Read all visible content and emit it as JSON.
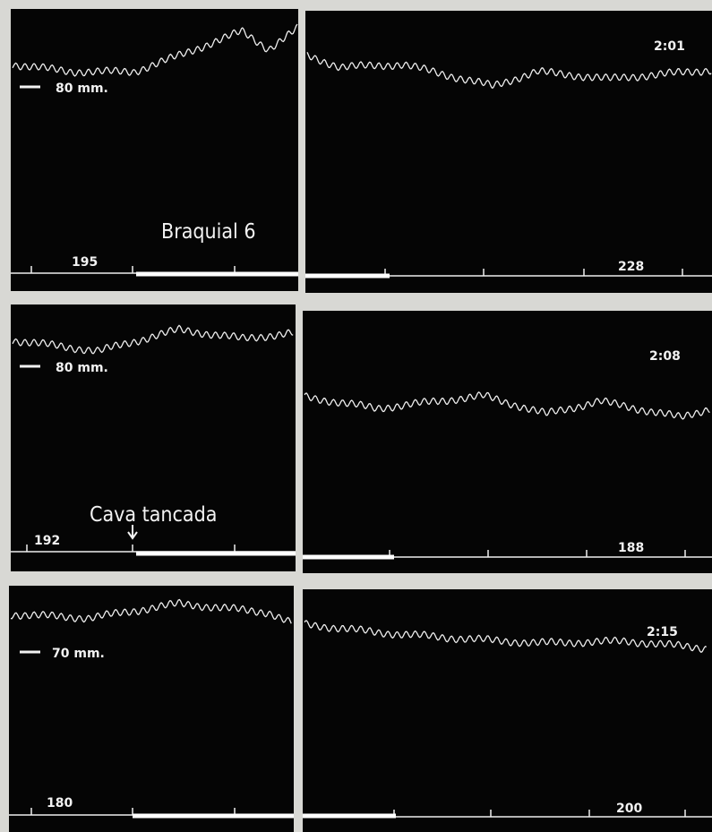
{
  "rows": [
    {
      "pressure": "80 mm.",
      "time": "2:01",
      "left_count": "195",
      "right_count": "228",
      "annotation": "Braquial 6"
    },
    {
      "pressure": "80 mm.",
      "time": "2:08",
      "left_count": "192",
      "right_count": "188",
      "annotation": "Cava tancada"
    },
    {
      "pressure": "70 mm.",
      "time": "2:15",
      "left_count": "180",
      "right_count": "200"
    }
  ]
}
